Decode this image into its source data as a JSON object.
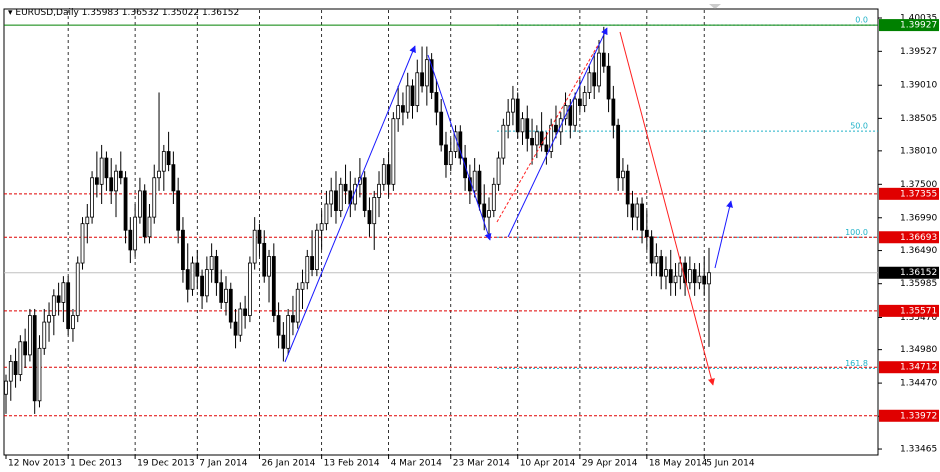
{
  "chart_data": {
    "type": "candlestick",
    "symbol": "EURUSD,Daily",
    "ylim": [
      1.33374,
      1.40157
    ],
    "yticks": [
      1.40035,
      1.39527,
      {
        "value": 1.3901,
        "label": "1.39010"
      },
      1.38505,
      {
        "value": 1.3801,
        "label": "1.38010"
      },
      {
        "value": 1.375,
        "label": "1.37500"
      },
      {
        "value": 1.3699,
        "label": "1.36990"
      },
      {
        "value": 1.3649,
        "label": "1.36490"
      },
      1.35985,
      {
        "value": 1.3547,
        "label": "1.35470"
      },
      {
        "value": 1.3498,
        "label": "1.34980"
      },
      {
        "value": 1.3447,
        "label": "1.34470"
      },
      1.33965,
      1.33465
    ],
    "xticks": [
      {
        "value": 0,
        "label": "12 Nov 2013"
      },
      {
        "value": 13,
        "label": "1 Dec 2013"
      },
      {
        "value": 27,
        "label": "19 Dec 2013"
      },
      {
        "value": 40,
        "label": "7 Jan 2014"
      },
      {
        "value": 53,
        "label": "26 Jan 2014"
      },
      {
        "value": 66,
        "label": "13 Feb 2014"
      },
      {
        "value": 80,
        "label": "4 Mar 2014"
      },
      {
        "value": 93,
        "label": "23 Mar 2014"
      },
      {
        "value": 107,
        "label": "10 Apr 2014"
      },
      {
        "value": 120,
        "label": "29 Apr 2014"
      },
      {
        "value": 134,
        "label": "18 May 2014"
      },
      {
        "value": 146,
        "label": "5 Jun 2014"
      }
    ],
    "grid": true,
    "levels": [
      {
        "value": 1.39927,
        "color": "#008000"
      },
      {
        "value": 1.37355,
        "color": "#e00000"
      },
      {
        "value": 1.36693,
        "color": "#e00000"
      },
      {
        "value": 1.35571,
        "color": "#e00000"
      },
      {
        "value": 1.34712,
        "color": "#e00000"
      },
      {
        "value": 1.33972,
        "color": "#e00000"
      }
    ],
    "fibonacci": {
      "start": 1.39927,
      "end": 1.36693,
      "color": "#20b2c8",
      "levels": [
        {
          "value": 0,
          "label": "0.0"
        },
        {
          "value": 50,
          "label": "50.0"
        },
        {
          "value": 100,
          "label": "100.0"
        },
        161.8
      ]
    },
    "candles": [
      [
        1.343,
        1.346,
        1.34,
        1.345
      ],
      [
        1.345,
        1.349,
        1.342,
        1.348
      ],
      [
        1.348,
        1.35,
        1.344,
        1.346
      ],
      [
        1.346,
        1.352,
        1.345,
        1.351
      ],
      [
        1.351,
        1.353,
        1.347,
        1.349
      ],
      [
        1.349,
        1.356,
        1.348,
        1.355
      ],
      [
        1.355,
        1.356,
        1.34,
        1.342
      ],
      [
        1.342,
        1.352,
        1.341,
        1.35
      ],
      [
        1.35,
        1.356,
        1.349,
        1.354
      ],
      [
        1.354,
        1.357,
        1.351,
        1.355
      ],
      [
        1.355,
        1.359,
        1.352,
        1.358
      ],
      [
        1.358,
        1.36,
        1.355,
        1.357
      ],
      [
        1.357,
        1.361,
        1.354,
        1.36
      ],
      [
        1.36,
        1.361,
        1.352,
        1.353
      ],
      [
        1.353,
        1.356,
        1.351,
        1.355
      ],
      [
        1.355,
        1.364,
        1.354,
        1.363
      ],
      [
        1.363,
        1.37,
        1.362,
        1.369
      ],
      [
        1.369,
        1.372,
        1.366,
        1.37
      ],
      [
        1.37,
        1.377,
        1.369,
        1.376
      ],
      [
        1.376,
        1.38,
        1.373,
        1.375
      ],
      [
        1.375,
        1.381,
        1.372,
        1.379
      ],
      [
        1.379,
        1.38,
        1.374,
        1.376
      ],
      [
        1.376,
        1.379,
        1.372,
        1.374
      ],
      [
        1.374,
        1.378,
        1.37,
        1.377
      ],
      [
        1.377,
        1.38,
        1.375,
        1.376
      ],
      [
        1.376,
        1.377,
        1.366,
        1.368
      ],
      [
        1.368,
        1.37,
        1.363,
        1.365
      ],
      [
        1.365,
        1.372,
        1.364,
        1.37
      ],
      [
        1.37,
        1.376,
        1.369,
        1.374
      ],
      [
        1.374,
        1.375,
        1.366,
        1.367
      ],
      [
        1.367,
        1.372,
        1.366,
        1.37
      ],
      [
        1.37,
        1.378,
        1.369,
        1.376
      ],
      [
        1.376,
        1.389,
        1.374,
        1.377
      ],
      [
        1.377,
        1.381,
        1.374,
        1.38
      ],
      [
        1.38,
        1.383,
        1.377,
        1.378
      ],
      [
        1.378,
        1.38,
        1.372,
        1.374
      ],
      [
        1.374,
        1.376,
        1.366,
        1.368
      ],
      [
        1.368,
        1.37,
        1.36,
        1.362
      ],
      [
        1.362,
        1.366,
        1.357,
        1.359
      ],
      [
        1.359,
        1.364,
        1.358,
        1.363
      ],
      [
        1.363,
        1.365,
        1.359,
        1.361
      ],
      [
        1.361,
        1.362,
        1.356,
        1.358
      ],
      [
        1.358,
        1.364,
        1.357,
        1.362
      ],
      [
        1.362,
        1.366,
        1.36,
        1.364
      ],
      [
        1.364,
        1.365,
        1.358,
        1.36
      ],
      [
        1.36,
        1.362,
        1.356,
        1.357
      ],
      [
        1.357,
        1.361,
        1.355,
        1.359
      ],
      [
        1.359,
        1.36,
        1.353,
        1.354
      ],
      [
        1.354,
        1.356,
        1.35,
        1.352
      ],
      [
        1.352,
        1.357,
        1.351,
        1.356
      ],
      [
        1.356,
        1.358,
        1.353,
        1.355
      ],
      [
        1.355,
        1.364,
        1.354,
        1.363
      ],
      [
        1.363,
        1.37,
        1.362,
        1.368
      ],
      [
        1.368,
        1.369,
        1.364,
        1.366
      ],
      [
        1.366,
        1.368,
        1.36,
        1.361
      ],
      [
        1.361,
        1.365,
        1.357,
        1.364
      ],
      [
        1.364,
        1.366,
        1.354,
        1.355
      ],
      [
        1.355,
        1.357,
        1.35,
        1.352
      ],
      [
        1.352,
        1.354,
        1.348,
        1.35
      ],
      [
        1.35,
        1.356,
        1.349,
        1.355
      ],
      [
        1.355,
        1.358,
        1.352,
        1.354
      ],
      [
        1.354,
        1.36,
        1.353,
        1.359
      ],
      [
        1.359,
        1.362,
        1.356,
        1.36
      ],
      [
        1.36,
        1.365,
        1.359,
        1.364
      ],
      [
        1.364,
        1.368,
        1.361,
        1.362
      ],
      [
        1.362,
        1.369,
        1.361,
        1.368
      ],
      [
        1.368,
        1.371,
        1.365,
        1.369
      ],
      [
        1.369,
        1.374,
        1.368,
        1.372
      ],
      [
        1.372,
        1.376,
        1.37,
        1.374
      ],
      [
        1.374,
        1.377,
        1.369,
        1.371
      ],
      [
        1.371,
        1.376,
        1.37,
        1.375
      ],
      [
        1.375,
        1.378,
        1.372,
        1.374
      ],
      [
        1.374,
        1.377,
        1.37,
        1.372
      ],
      [
        1.372,
        1.376,
        1.371,
        1.375
      ],
      [
        1.375,
        1.379,
        1.373,
        1.376
      ],
      [
        1.376,
        1.377,
        1.37,
        1.371
      ],
      [
        1.371,
        1.373,
        1.367,
        1.369
      ],
      [
        1.369,
        1.374,
        1.365,
        1.373
      ],
      [
        1.373,
        1.377,
        1.37,
        1.375
      ],
      [
        1.375,
        1.379,
        1.374,
        1.378
      ],
      [
        1.378,
        1.38,
        1.373,
        1.375
      ],
      [
        1.375,
        1.386,
        1.374,
        1.385
      ],
      [
        1.385,
        1.39,
        1.383,
        1.387
      ],
      [
        1.387,
        1.389,
        1.384,
        1.386
      ],
      [
        1.386,
        1.392,
        1.385,
        1.39
      ],
      [
        1.39,
        1.391,
        1.385,
        1.387
      ],
      [
        1.387,
        1.394,
        1.386,
        1.392
      ],
      [
        1.392,
        1.396,
        1.389,
        1.39
      ],
      [
        1.39,
        1.396,
        1.387,
        1.394
      ],
      [
        1.394,
        1.395,
        1.388,
        1.389
      ],
      [
        1.389,
        1.391,
        1.384,
        1.386
      ],
      [
        1.386,
        1.388,
        1.38,
        1.381
      ],
      [
        1.381,
        1.383,
        1.376,
        1.378
      ],
      [
        1.378,
        1.382,
        1.377,
        1.38
      ],
      [
        1.38,
        1.384,
        1.379,
        1.383
      ],
      [
        1.383,
        1.384,
        1.378,
        1.379
      ],
      [
        1.379,
        1.381,
        1.374,
        1.376
      ],
      [
        1.376,
        1.378,
        1.372,
        1.374
      ],
      [
        1.374,
        1.379,
        1.373,
        1.377
      ],
      [
        1.377,
        1.378,
        1.371,
        1.372
      ],
      [
        1.372,
        1.375,
        1.368,
        1.37
      ],
      [
        1.37,
        1.373,
        1.367,
        1.371
      ],
      [
        1.371,
        1.376,
        1.37,
        1.375
      ],
      [
        1.375,
        1.38,
        1.374,
        1.379
      ],
      [
        1.379,
        1.385,
        1.378,
        1.384
      ],
      [
        1.384,
        1.388,
        1.382,
        1.386
      ],
      [
        1.386,
        1.39,
        1.384,
        1.388
      ],
      [
        1.388,
        1.389,
        1.382,
        1.383
      ],
      [
        1.383,
        1.386,
        1.381,
        1.385
      ],
      [
        1.385,
        1.387,
        1.38,
        1.382
      ],
      [
        1.382,
        1.385,
        1.378,
        1.381
      ],
      [
        1.381,
        1.384,
        1.379,
        1.383
      ],
      [
        1.383,
        1.386,
        1.38,
        1.381
      ],
      [
        1.381,
        1.383,
        1.378,
        1.38
      ],
      [
        1.38,
        1.385,
        1.379,
        1.384
      ],
      [
        1.384,
        1.387,
        1.382,
        1.383
      ],
      [
        1.383,
        1.386,
        1.381,
        1.385
      ],
      [
        1.385,
        1.389,
        1.384,
        1.387
      ],
      [
        1.387,
        1.388,
        1.382,
        1.384
      ],
      [
        1.384,
        1.389,
        1.383,
        1.388
      ],
      [
        1.388,
        1.391,
        1.386,
        1.387
      ],
      [
        1.387,
        1.39,
        1.386,
        1.389
      ],
      [
        1.389,
        1.393,
        1.388,
        1.392
      ],
      [
        1.392,
        1.395,
        1.388,
        1.39
      ],
      [
        1.39,
        1.397,
        1.389,
        1.395
      ],
      [
        1.395,
        1.399,
        1.392,
        1.393
      ],
      [
        1.393,
        1.395,
        1.386,
        1.388
      ],
      [
        1.388,
        1.39,
        1.382,
        1.384
      ],
      [
        1.384,
        1.385,
        1.374,
        1.376
      ],
      [
        1.376,
        1.379,
        1.374,
        1.377
      ],
      [
        1.377,
        1.378,
        1.37,
        1.372
      ],
      [
        1.372,
        1.374,
        1.368,
        1.37
      ],
      [
        1.37,
        1.373,
        1.368,
        1.372
      ],
      [
        1.372,
        1.373,
        1.366,
        1.368
      ],
      [
        1.368,
        1.371,
        1.365,
        1.367
      ],
      [
        1.367,
        1.368,
        1.361,
        1.363
      ],
      [
        1.363,
        1.366,
        1.361,
        1.364
      ],
      [
        1.364,
        1.365,
        1.359,
        1.361
      ],
      [
        1.361,
        1.364,
        1.359,
        1.362
      ],
      [
        1.362,
        1.365,
        1.358,
        1.36
      ],
      [
        1.36,
        1.363,
        1.358,
        1.361
      ],
      [
        1.361,
        1.364,
        1.359,
        1.363
      ],
      [
        1.363,
        1.364,
        1.358,
        1.36
      ],
      [
        1.36,
        1.364,
        1.359,
        1.362
      ],
      [
        1.362,
        1.363,
        1.358,
        1.36
      ],
      [
        1.36,
        1.363,
        1.359,
        1.361
      ],
      [
        1.361,
        1.364,
        1.358,
        1.3598
      ],
      [
        1.35983,
        1.36532,
        1.35022,
        1.36152
      ]
    ]
  }
}
